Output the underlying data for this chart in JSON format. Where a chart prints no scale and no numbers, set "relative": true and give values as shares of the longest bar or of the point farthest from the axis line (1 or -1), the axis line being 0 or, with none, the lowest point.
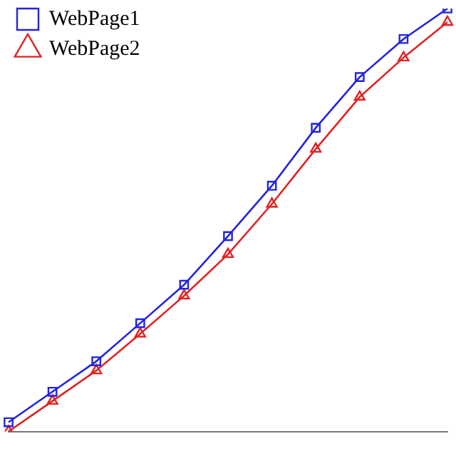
{
  "chart_data": {
    "type": "line",
    "relative": true,
    "categories": [
      null,
      null,
      null,
      null,
      null,
      null,
      null,
      null,
      null,
      null,
      null
    ],
    "series": [
      {
        "name": "WebPage1",
        "color": "#2323e0",
        "marker": "square",
        "values": [
          0.022,
          0.094,
          0.166,
          0.256,
          0.347,
          0.462,
          0.581,
          0.718,
          0.838,
          0.928,
          1
        ]
      },
      {
        "name": "WebPage2",
        "color": "#e02323",
        "marker": "triangle",
        "values": [
          0,
          0.072,
          0.144,
          0.231,
          0.321,
          0.419,
          0.538,
          0.668,
          0.791,
          0.884,
          0.968
        ]
      }
    ],
    "legend": "top left",
    "line_style": "solid"
  }
}
